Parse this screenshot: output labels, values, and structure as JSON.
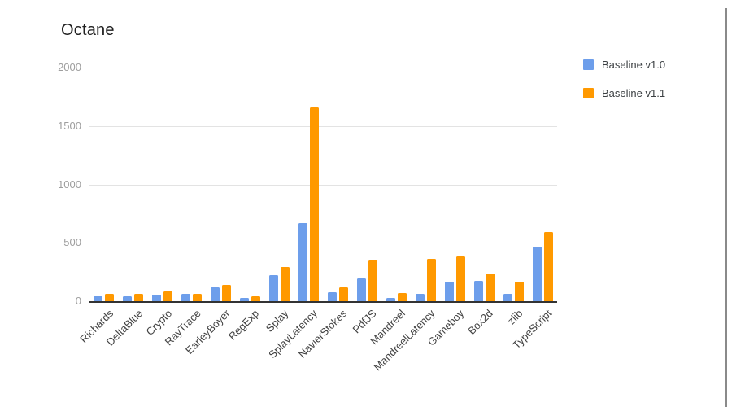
{
  "title": "Octane",
  "chart_data": {
    "type": "bar",
    "title": "Octane",
    "xlabel": "",
    "ylabel": "",
    "ylim": [
      0,
      2000
    ],
    "yticks": [
      0,
      500,
      1000,
      1500,
      2000
    ],
    "grid": true,
    "legend_position": "right",
    "categories": [
      "Richards",
      "DeltaBlue",
      "Crypto",
      "RayTrace",
      "EarleyBoyer",
      "RegExp",
      "Splay",
      "SplayLatency",
      "NavierStokes",
      "PdfJS",
      "Mandreel",
      "MandreelLatency",
      "Gameboy",
      "Box2d",
      "zlib",
      "TypeScript"
    ],
    "series": [
      {
        "name": "Baseline v1.0",
        "color": "#6d9eeb",
        "values": [
          40,
          45,
          55,
          60,
          115,
          25,
          220,
          670,
          75,
          195,
          30,
          60,
          165,
          175,
          60,
          470
        ]
      },
      {
        "name": "Baseline v1.1",
        "color": "#ff9900",
        "values": [
          60,
          65,
          85,
          60,
          140,
          40,
          290,
          1660,
          115,
          350,
          70,
          360,
          380,
          240,
          170,
          590
        ]
      }
    ]
  }
}
